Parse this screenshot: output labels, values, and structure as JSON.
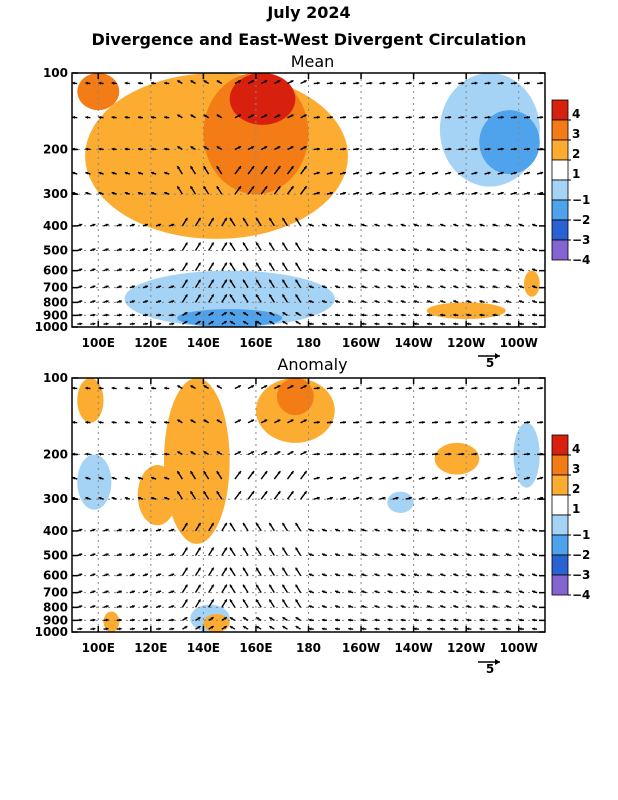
{
  "figure": {
    "title": "July 2024",
    "subtitle": "Divergence and East-West Divergent Circulation"
  },
  "chart_data": [
    {
      "type": "heatmap",
      "panel_title": "Mean",
      "x_tick_labels": [
        "100E",
        "120E",
        "140E",
        "160E",
        "180",
        "160W",
        "140W",
        "120W",
        "100W"
      ],
      "x_tick_lon": [
        100,
        120,
        140,
        160,
        180,
        200,
        220,
        240,
        260
      ],
      "xlim_lon": [
        90,
        270
      ],
      "y_tick_labels": [
        "100",
        "200",
        "300",
        "400",
        "500",
        "600",
        "700",
        "800",
        "900",
        "1000"
      ],
      "y_tick_hpa": [
        100,
        200,
        300,
        400,
        500,
        600,
        700,
        800,
        900,
        1000
      ],
      "ylim_hpa": [
        1000,
        100
      ],
      "y_scale": "log",
      "legend_levels": [
        "4",
        "3",
        "2",
        "1",
        "-1",
        "-2",
        "-3",
        "-4"
      ],
      "legend_colors": [
        "#d8200f",
        "#f37c16",
        "#fbac31",
        "#ffffff",
        "#a5d3f5",
        "#4fa2ec",
        "#2a61d3",
        "#8364d0"
      ],
      "reference_vector_label": "5",
      "grid": true,
      "features": [
        {
          "lon": [
            140,
            180
          ],
          "hpa": [
            100,
            300
          ],
          "level": 3
        },
        {
          "lon": [
            150,
            175
          ],
          "hpa": [
            100,
            160
          ],
          "level": 4
        },
        {
          "lon": [
            92,
            108
          ],
          "hpa": [
            100,
            140
          ],
          "level": 3
        },
        {
          "lon": [
            95,
            195
          ],
          "hpa": [
            100,
            450
          ],
          "level": 2
        },
        {
          "lon": [
            230,
            268
          ],
          "hpa": [
            100,
            280
          ],
          "level": -1
        },
        {
          "lon": [
            245,
            268
          ],
          "hpa": [
            140,
            250
          ],
          "level": -2
        },
        {
          "lon": [
            110,
            190
          ],
          "hpa": [
            600,
            1000
          ],
          "level": -1
        },
        {
          "lon": [
            130,
            170
          ],
          "hpa": [
            850,
            1000
          ],
          "level": -2
        },
        {
          "lon": [
            225,
            255
          ],
          "hpa": [
            800,
            930
          ],
          "level": 2
        },
        {
          "lon": [
            262,
            268
          ],
          "hpa": [
            600,
            760
          ],
          "level": 2
        }
      ]
    },
    {
      "type": "heatmap",
      "panel_title": "Anomaly",
      "x_tick_labels": [
        "100E",
        "120E",
        "140E",
        "160E",
        "180",
        "160W",
        "140W",
        "120W",
        "100W"
      ],
      "x_tick_lon": [
        100,
        120,
        140,
        160,
        180,
        200,
        220,
        240,
        260
      ],
      "xlim_lon": [
        90,
        270
      ],
      "y_tick_labels": [
        "100",
        "200",
        "300",
        "400",
        "500",
        "600",
        "700",
        "800",
        "900",
        "1000"
      ],
      "y_tick_hpa": [
        100,
        200,
        300,
        400,
        500,
        600,
        700,
        800,
        900,
        1000
      ],
      "ylim_hpa": [
        1000,
        100
      ],
      "y_scale": "log",
      "legend_levels": [
        "4",
        "3",
        "2",
        "1",
        "-1",
        "-2",
        "-3",
        "-4"
      ],
      "legend_colors": [
        "#d8200f",
        "#f37c16",
        "#fbac31",
        "#ffffff",
        "#a5d3f5",
        "#4fa2ec",
        "#2a61d3",
        "#8364d0"
      ],
      "reference_vector_label": "5",
      "grid": true,
      "features": [
        {
          "lon": [
            92,
            102
          ],
          "hpa": [
            100,
            150
          ],
          "level": 2
        },
        {
          "lon": [
            160,
            190
          ],
          "hpa": [
            100,
            180
          ],
          "level": 2
        },
        {
          "lon": [
            168,
            182
          ],
          "hpa": [
            100,
            140
          ],
          "level": 3
        },
        {
          "lon": [
            125,
            150
          ],
          "hpa": [
            100,
            450
          ],
          "level": 2
        },
        {
          "lon": [
            115,
            130
          ],
          "hpa": [
            220,
            380
          ],
          "level": 2
        },
        {
          "lon": [
            228,
            245
          ],
          "hpa": [
            180,
            240
          ],
          "level": 2
        },
        {
          "lon": [
            92,
            105
          ],
          "hpa": [
            200,
            330
          ],
          "level": -1
        },
        {
          "lon": [
            210,
            220
          ],
          "hpa": [
            280,
            340
          ],
          "level": -1
        },
        {
          "lon": [
            258,
            268
          ],
          "hpa": [
            150,
            270
          ],
          "level": -1
        },
        {
          "lon": [
            135,
            150
          ],
          "hpa": [
            780,
            1000
          ],
          "level": -1
        },
        {
          "lon": [
            140,
            150
          ],
          "hpa": [
            850,
            1000
          ],
          "level": 2
        },
        {
          "lon": [
            102,
            108
          ],
          "hpa": [
            830,
            1000
          ],
          "level": 2
        }
      ]
    }
  ]
}
